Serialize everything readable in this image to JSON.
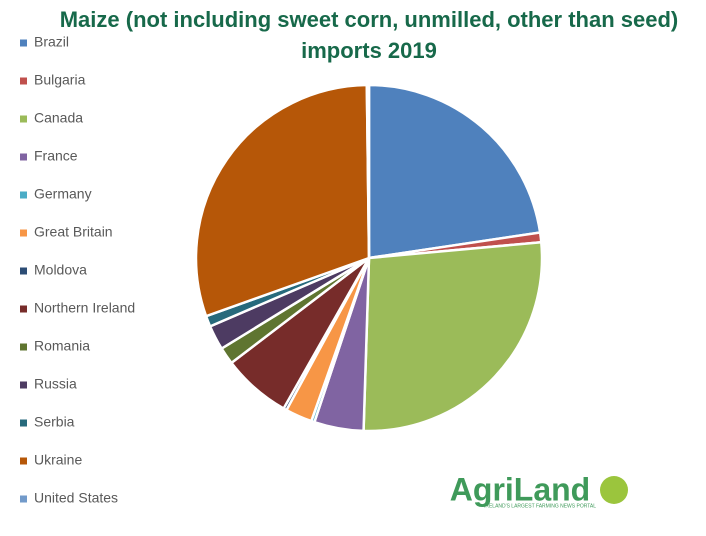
{
  "chart_data": {
    "type": "pie",
    "title": "Maize (not including sweet corn, unmilled, other than seed) imports 2019",
    "categories": [
      "Brazil",
      "Bulgaria",
      "Canada",
      "France",
      "Germany",
      "Great Britain",
      "Moldova",
      "Northern Ireland",
      "Romania",
      "Russia",
      "Serbia",
      "Ukraine",
      "United States"
    ],
    "values": [
      22.6,
      0.9,
      26.9,
      4.6,
      0.3,
      2.5,
      0.3,
      6.4,
      1.6,
      2.3,
      1.0,
      30.2,
      0.2
    ],
    "colors": [
      "#4f81bd",
      "#c0504d",
      "#9bbb59",
      "#8064a2",
      "#4bacc6",
      "#f79646",
      "#2c4d75",
      "#772c2a",
      "#5f7530",
      "#4d3b62",
      "#276a7c",
      "#b65708",
      "#729aca"
    ],
    "legend": "left"
  },
  "logo": {
    "name": "AgriLand",
    "tagline": "IRELAND'S LARGEST FARMING NEWS PORTAL"
  }
}
